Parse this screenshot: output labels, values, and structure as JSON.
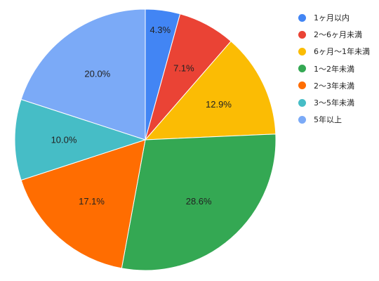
{
  "chart_data": {
    "type": "pie",
    "start_angle_deg": 0,
    "direction": "clockwise",
    "legend_position": "right",
    "slices": [
      {
        "name": "1ヶ月以内",
        "value": 4.3,
        "label": "4.3%",
        "color": "#4285F4"
      },
      {
        "name": "2〜6ヶ月未満",
        "value": 7.1,
        "label": "7.1%",
        "color": "#EA4335"
      },
      {
        "name": "6ヶ月〜1年未満",
        "value": 12.9,
        "label": "12.9%",
        "color": "#FBBC04"
      },
      {
        "name": "1〜2年未満",
        "value": 28.6,
        "label": "28.6%",
        "color": "#34A853"
      },
      {
        "name": "2〜3年未満",
        "value": 17.1,
        "label": "17.1%",
        "color": "#FF6D01"
      },
      {
        "name": "3〜5年未満",
        "value": 10.0,
        "label": "10.0%",
        "color": "#46BDC6"
      },
      {
        "name": "5年以上",
        "value": 20.0,
        "label": "20.0%",
        "color": "#7BAAF7"
      }
    ]
  }
}
